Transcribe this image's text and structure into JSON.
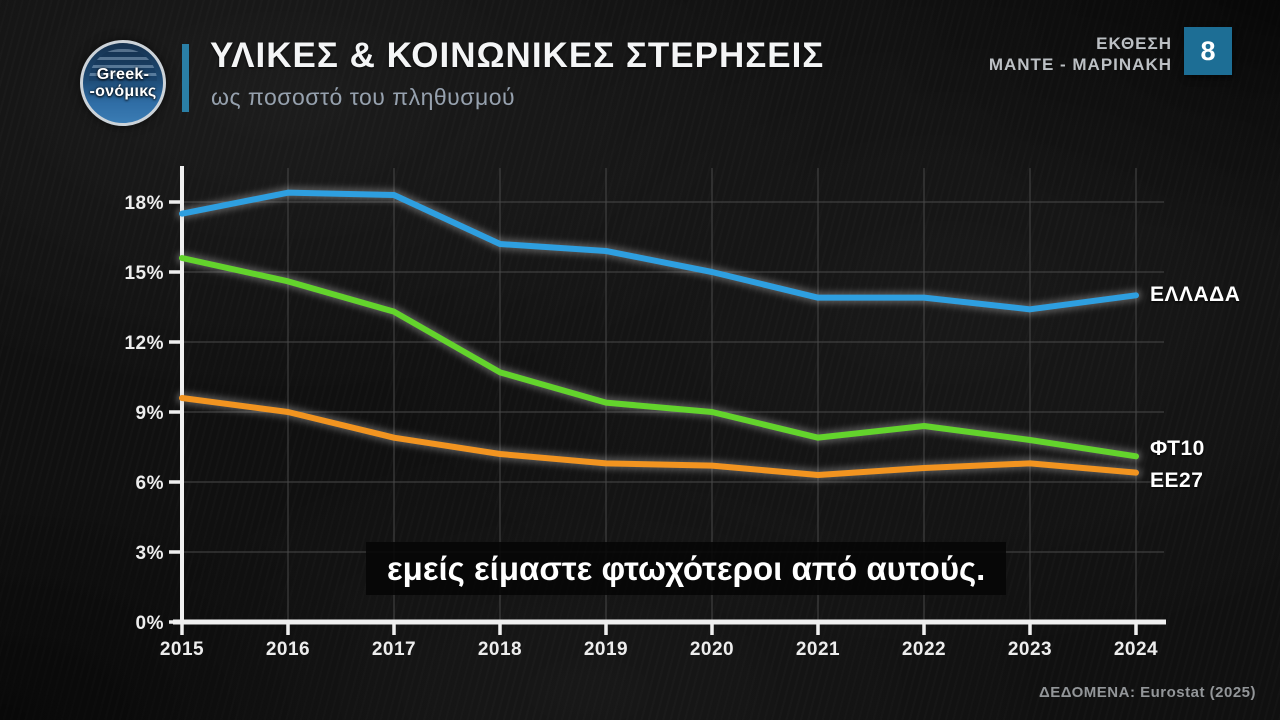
{
  "header": {
    "logo_line1": "Greek-",
    "logo_line2": "-ονόμικς",
    "report_line1": "ΕΚΘΕΣΗ",
    "report_line2": "ΜΑΝΤΕ - ΜΑΡΙΝΑΚΗ",
    "page_number": "8"
  },
  "chart_data": {
    "type": "line",
    "title": "ΥΛΙΚΕΣ & ΚΟΙΝΩΝΙΚΕΣ ΣΤΕΡΗΣΕΙΣ",
    "subtitle": "ως ποσοστό του πληθυσμού",
    "x": [
      2015,
      2016,
      2017,
      2018,
      2019,
      2020,
      2021,
      2022,
      2023,
      2024
    ],
    "series": [
      {
        "name": "ΕΛΛΑΔΑ",
        "color": "#2e9fe0",
        "values": [
          17.5,
          18.4,
          18.3,
          16.2,
          15.9,
          15.0,
          13.9,
          13.9,
          13.4,
          14.0
        ]
      },
      {
        "name": "ΦΤ10",
        "color": "#63d42c",
        "values": [
          15.6,
          14.6,
          13.3,
          10.7,
          9.4,
          9.0,
          7.9,
          8.4,
          7.8,
          7.1
        ]
      },
      {
        "name": "ΕΕ27",
        "color": "#f29420",
        "values": [
          9.6,
          9.0,
          7.9,
          7.2,
          6.8,
          6.7,
          6.3,
          6.6,
          6.8,
          6.4
        ]
      }
    ],
    "ylim": [
      0,
      18
    ],
    "ytick_step": 3,
    "ytick_suffix": "%",
    "grid": true,
    "legend_position": "right-of-line-ends"
  },
  "caption": {
    "text": "εμείς είμαστε φτωχότεροι από αυτούς."
  },
  "source": {
    "text": "ΔΕΔΟΜΕΝΑ: Eurostat (2025)"
  },
  "colors": {
    "accent": "#2a7fa6",
    "page_box": "#1d6e95",
    "axis": "#f0f0f0",
    "grid": "#4a4a4a",
    "caption_bg": "#060606"
  }
}
